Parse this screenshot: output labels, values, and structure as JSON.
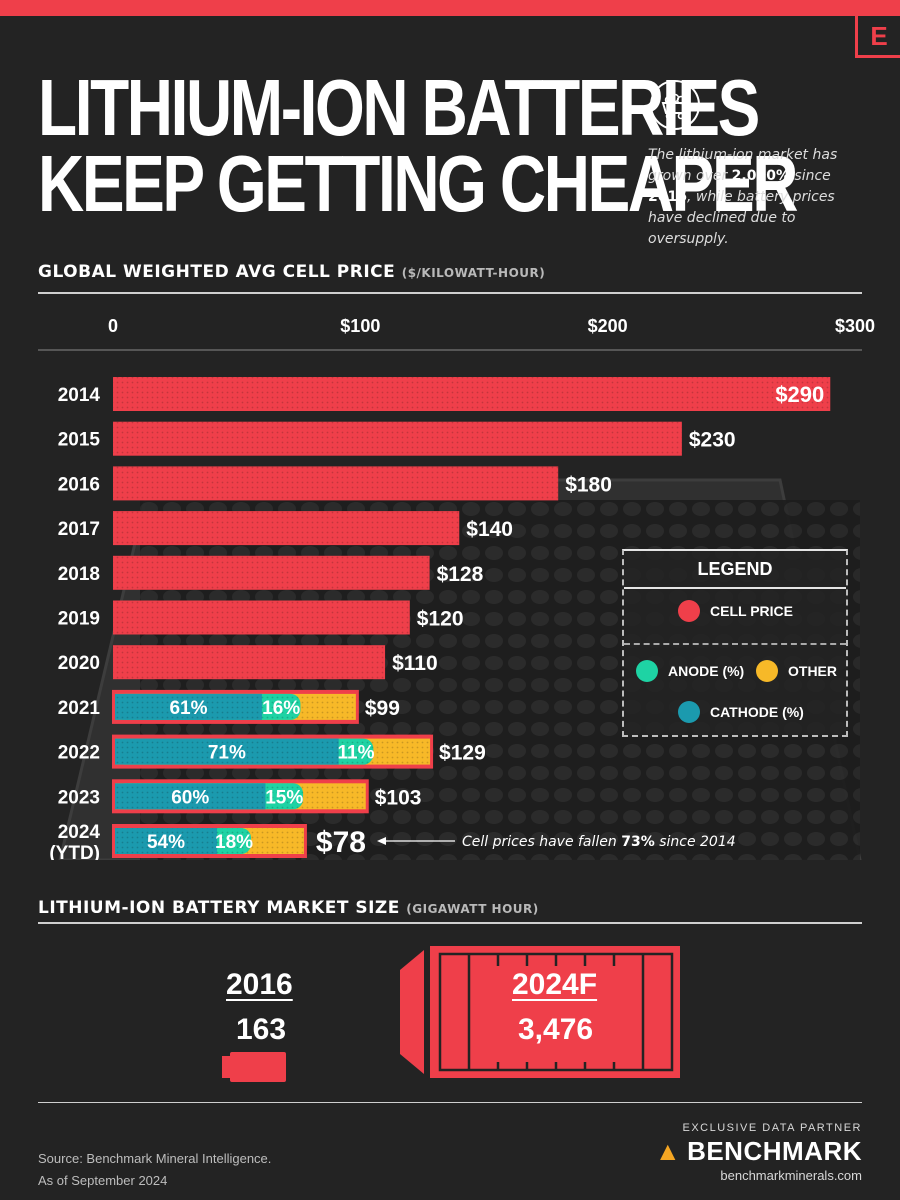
{
  "brand_mark": "E",
  "title_line1": "LITHIUM-ION BATTERIES",
  "title_line2": "KEEP GETTING CHEAPER",
  "subtitle": {
    "part1": "The lithium-ion market has grown over ",
    "bold1": "2,000%",
    "part2": " since ",
    "bold2": "2016",
    "part3": ", while battery prices have declined due to oversupply."
  },
  "chart_title": "GLOBAL WEIGHTED AVG CELL PRICE",
  "chart_unit": "($/KILOWATT-HOUR)",
  "colors": {
    "cell_price": "#ef3f4a",
    "anode": "#1ed3a4",
    "other": "#f7b928",
    "cathode": "#1b9aae",
    "background": "#232323"
  },
  "chart_data": {
    "type": "bar",
    "orientation": "horizontal",
    "xlim": [
      0,
      300
    ],
    "x_ticks": [
      "0",
      "$100",
      "$200",
      "$300"
    ],
    "x_tick_values": [
      0,
      100,
      200,
      300
    ],
    "rows": [
      {
        "year": "2014",
        "value": 290,
        "label": "$290",
        "label_inside": true
      },
      {
        "year": "2015",
        "value": 230,
        "label": "$230"
      },
      {
        "year": "2016",
        "value": 180,
        "label": "$180"
      },
      {
        "year": "2017",
        "value": 140,
        "label": "$140"
      },
      {
        "year": "2018",
        "value": 128,
        "label": "$128"
      },
      {
        "year": "2019",
        "value": 120,
        "label": "$120"
      },
      {
        "year": "2020",
        "value": 110,
        "label": "$110"
      },
      {
        "year": "2021",
        "value": 99,
        "label": "$99",
        "cathode": 61,
        "anode": 16,
        "cathode_label": "61%",
        "anode_label": "16%"
      },
      {
        "year": "2022",
        "value": 129,
        "label": "$129",
        "cathode": 71,
        "anode": 11,
        "cathode_label": "71%",
        "anode_label": "11%"
      },
      {
        "year": "2023",
        "value": 103,
        "label": "$103",
        "cathode": 60,
        "anode": 15,
        "cathode_label": "60%",
        "anode_label": "15%"
      },
      {
        "year": "2024",
        "year2": "(YTD)",
        "value": 78,
        "label": "$78",
        "big": true,
        "cathode": 54,
        "anode": 18,
        "cathode_label": "54%",
        "anode_label": "18%"
      }
    ],
    "annotation": {
      "text1": "Cell prices have fallen ",
      "bold": "73%",
      "text2": " since 2014"
    }
  },
  "legend": {
    "title": "LEGEND",
    "cell_price": "CELL PRICE",
    "anode": "ANODE (%)",
    "other": "OTHER",
    "cathode": "CATHODE (%)"
  },
  "market": {
    "title": "LITHIUM-ION BATTERY MARKET SIZE",
    "unit": "(GIGAWATT HOUR)",
    "y2016_label": "2016",
    "y2016_value": "163",
    "y2024_label": "2024F",
    "y2024_value": "3,476"
  },
  "source_line1": "Source: Benchmark Mineral Intelligence.",
  "source_line2": "As of September 2024",
  "partner_caption": "EXCLUSIVE DATA PARTNER",
  "partner_name": "BENCHMARK",
  "partner_url": "benchmarkminerals.com"
}
